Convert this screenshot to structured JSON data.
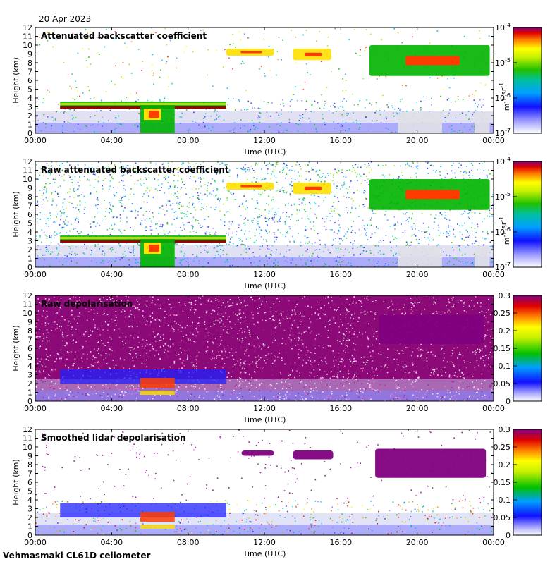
{
  "date": "20 Apr 2023",
  "instrument": "Vehmasmaki CL61D ceilometer",
  "colors": {
    "background_fill": "#d9d9f0",
    "clear_air": "#ffffff",
    "cloud_low": "#00b400",
    "cloud_mid": "#ffe000",
    "cloud_high": "#ff3c00",
    "cloud_peak": "#a00000",
    "depol_high": "#800080",
    "axis": "#000000"
  },
  "colormap": [
    "#ffffff",
    "#e6e6f5",
    "#7f7fff",
    "#2020ff",
    "#00a0ff",
    "#00d0d0",
    "#00c000",
    "#a0e000",
    "#ffff00",
    "#ffa000",
    "#ff2000",
    "#c00000",
    "#800080"
  ],
  "chart_data": [
    {
      "type": "heatmap",
      "name": "backscatter",
      "title": "Attenuated backscatter coefficient",
      "xlabel": "Time (UTC)",
      "ylabel": "Height (km)",
      "xlim": [
        0,
        24
      ],
      "ylim": [
        0,
        12
      ],
      "x_ticks": [
        "00:00",
        "04:00",
        "08:00",
        "12:00",
        "16:00",
        "20:00",
        "00:00"
      ],
      "y_ticks": [
        "0",
        "1",
        "2",
        "3",
        "4",
        "5",
        "6",
        "7",
        "8",
        "9",
        "10",
        "11",
        "12"
      ],
      "colorbar": {
        "scale": "log",
        "range": [
          1e-07,
          0.0001
        ],
        "unit": "m-1 sr-1",
        "ticks": [
          "10^-4",
          "10^-5",
          "10^-6",
          "10^-7"
        ]
      },
      "features": [
        {
          "label": "boundary-layer cloud",
          "t_start": 1.3,
          "t_end": 10.0,
          "z_base": 2.8,
          "z_top": 3.6
        },
        {
          "label": "precipitation shaft",
          "t_start": 5.5,
          "t_end": 7.3,
          "z_base": 0.0,
          "z_top": 3.2
        },
        {
          "label": "upper cloud",
          "t_start": 10.0,
          "t_end": 12.5,
          "z_base": 8.8,
          "z_top": 9.6
        },
        {
          "label": "upper cloud",
          "t_start": 13.5,
          "t_end": 15.5,
          "z_base": 8.3,
          "z_top": 9.6
        },
        {
          "label": "upper cloud",
          "t_start": 17.5,
          "t_end": 23.8,
          "z_base": 6.5,
          "z_top": 10.0
        }
      ]
    },
    {
      "type": "heatmap",
      "name": "raw_backscatter",
      "title": "Raw attenuated backscatter coefficient",
      "xlabel": "Time (UTC)",
      "ylabel": "Height (km)",
      "xlim": [
        0,
        24
      ],
      "ylim": [
        0,
        12
      ],
      "x_ticks": [
        "00:00",
        "04:00",
        "08:00",
        "12:00",
        "16:00",
        "20:00",
        "00:00"
      ],
      "y_ticks": [
        "0",
        "1",
        "2",
        "3",
        "4",
        "5",
        "6",
        "7",
        "8",
        "9",
        "10",
        "11",
        "12"
      ],
      "colorbar": {
        "scale": "log",
        "range": [
          1e-07,
          0.0001
        ],
        "unit": "m-1 sr-1",
        "ticks": [
          "10^-4",
          "10^-5",
          "10^-6",
          "10^-7"
        ]
      },
      "features": [
        {
          "label": "boundary-layer cloud",
          "t_start": 1.3,
          "t_end": 10.0,
          "z_base": 2.8,
          "z_top": 3.6
        },
        {
          "label": "precipitation shaft",
          "t_start": 5.5,
          "t_end": 7.3,
          "z_base": 0.0,
          "z_top": 3.2
        },
        {
          "label": "upper cloud",
          "t_start": 10.0,
          "t_end": 12.5,
          "z_base": 8.8,
          "z_top": 9.6
        },
        {
          "label": "upper cloud",
          "t_start": 13.5,
          "t_end": 15.5,
          "z_base": 8.3,
          "z_top": 9.6
        },
        {
          "label": "upper cloud",
          "t_start": 17.5,
          "t_end": 23.8,
          "z_base": 6.5,
          "z_top": 10.0
        }
      ]
    },
    {
      "type": "heatmap",
      "name": "raw_depolarisation",
      "title": "Raw depolarisation",
      "xlabel": "Time (UTC)",
      "ylabel": "Height (km)",
      "xlim": [
        0,
        24
      ],
      "ylim": [
        0,
        12
      ],
      "x_ticks": [
        "00:00",
        "04:00",
        "08:00",
        "12:00",
        "16:00",
        "20:00",
        "00:00"
      ],
      "y_ticks": [
        "0",
        "1",
        "2",
        "3",
        "4",
        "5",
        "6",
        "7",
        "8",
        "9",
        "10",
        "11",
        "12"
      ],
      "colorbar": {
        "scale": "linear",
        "range": [
          0,
          0.3
        ],
        "unit": "",
        "ticks": [
          "0.3",
          "0.25",
          "0.2",
          "0.15",
          "0.1",
          "0.05",
          "0"
        ]
      },
      "features": [
        {
          "label": "liquid cloud low depol",
          "t_start": 1.3,
          "t_end": 10.0,
          "z_base": 2.0,
          "z_top": 3.6
        },
        {
          "label": "ice cloud high depol",
          "t_start": 17.5,
          "t_end": 23.8,
          "z_base": 6.5,
          "z_top": 10.0
        }
      ]
    },
    {
      "type": "heatmap",
      "name": "smoothed_depolarisation",
      "title": "Smoothed lidar depolarisation",
      "xlabel": "Time (UTC)",
      "ylabel": "Height (km)",
      "xlim": [
        0,
        24
      ],
      "ylim": [
        0,
        12
      ],
      "x_ticks": [
        "00:00",
        "04:00",
        "08:00",
        "12:00",
        "16:00",
        "20:00",
        "00:00"
      ],
      "y_ticks": [
        "0",
        "1",
        "2",
        "3",
        "4",
        "5",
        "6",
        "7",
        "8",
        "9",
        "10",
        "11",
        "12"
      ],
      "colorbar": {
        "scale": "linear",
        "range": [
          0,
          0.3
        ],
        "unit": "",
        "ticks": [
          "0.3",
          "0.25",
          "0.2",
          "0.15",
          "0.1",
          "0.05",
          "0"
        ]
      },
      "features": [
        {
          "label": "liquid cloud low depol",
          "t_start": 1.3,
          "t_end": 10.0,
          "z_base": 2.0,
          "z_top": 3.6
        },
        {
          "label": "ice cloud high depol",
          "t_start": 10.0,
          "t_end": 23.8,
          "z_base": 6.5,
          "z_top": 10.0
        }
      ]
    }
  ]
}
